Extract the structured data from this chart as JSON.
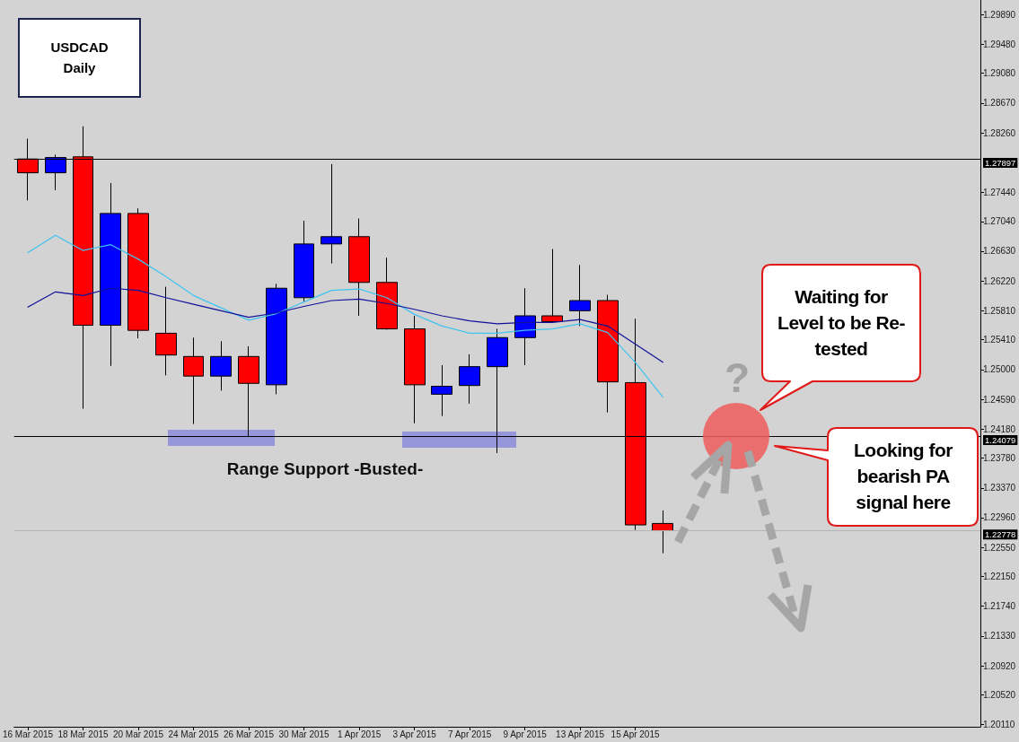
{
  "chart_data": {
    "type": "candlestick",
    "title": "USDCAD",
    "subtitle": "Daily",
    "categories": [
      "16 Mar 2015",
      null,
      "18 Mar 2015",
      null,
      "20 Mar 2015",
      null,
      "24 Mar 2015",
      null,
      "26 Mar 2015",
      null,
      "30 Mar 2015",
      null,
      "1 Apr 2015",
      null,
      "3 Apr 2015",
      null,
      "7 Apr 2015",
      null,
      "9 Apr 2015",
      null,
      "13 Apr 2015",
      null,
      "15 Apr 2015",
      null
    ],
    "ohlc": [
      [
        1.279,
        1.2818,
        1.2733,
        1.2771
      ],
      [
        1.2771,
        1.2796,
        1.2747,
        1.2792
      ],
      [
        1.2793,
        1.2835,
        1.2446,
        1.2561
      ],
      [
        1.2561,
        1.2757,
        1.2505,
        1.2715
      ],
      [
        1.2715,
        1.2722,
        1.2543,
        1.2554
      ],
      [
        1.255,
        1.2614,
        1.2492,
        1.252
      ],
      [
        1.2518,
        1.2544,
        1.2425,
        1.2491
      ],
      [
        1.2491,
        1.2539,
        1.2471,
        1.2518
      ],
      [
        1.2518,
        1.2532,
        1.2407,
        1.2481
      ],
      [
        1.2479,
        1.2618,
        1.2466,
        1.2612
      ],
      [
        1.2599,
        1.2705,
        1.2594,
        1.2673
      ],
      [
        1.2673,
        1.2783,
        1.2646,
        1.2683
      ],
      [
        1.2683,
        1.2708,
        1.2574,
        1.262
      ],
      [
        1.262,
        1.2654,
        1.2555,
        1.2556
      ],
      [
        1.2556,
        1.2574,
        1.2426,
        1.2479
      ],
      [
        1.2466,
        1.2506,
        1.2436,
        1.2477
      ],
      [
        1.2478,
        1.2521,
        1.2453,
        1.2504
      ],
      [
        1.2504,
        1.2556,
        1.2385,
        1.2544
      ],
      [
        1.2544,
        1.2612,
        1.2506,
        1.2574
      ],
      [
        1.2574,
        1.2666,
        1.2566,
        1.2566
      ],
      [
        1.2581,
        1.2644,
        1.256,
        1.2595
      ],
      [
        1.2595,
        1.2603,
        1.2441,
        1.2483
      ],
      [
        1.2482,
        1.257,
        1.2279,
        1.2286
      ],
      [
        1.2288,
        1.2306,
        1.2247,
        1.2278
      ]
    ],
    "colors": [
      "#ff0000",
      "#0000ff",
      "#ff0000",
      "#0000ff",
      "#ff0000",
      "#ff0000",
      "#ff0000",
      "#0000ff",
      "#ff0000",
      "#0000ff",
      "#0000ff",
      "#0000ff",
      "#ff0000",
      "#ff0000",
      "#ff0000",
      "#0000ff",
      "#0000ff",
      "#0000ff",
      "#0000ff",
      "#ff0000",
      "#0000ff",
      "#ff0000",
      "#ff0000",
      "#ff0000"
    ],
    "series": [
      {
        "type": "line",
        "color": "#3ec4f0",
        "values": [
          1.2661,
          1.2685,
          1.2664,
          1.2672,
          1.2652,
          1.2628,
          1.2602,
          1.2585,
          1.2568,
          1.2577,
          1.2593,
          1.2609,
          1.2611,
          1.2599,
          1.2576,
          1.256,
          1.255,
          1.255,
          1.2554,
          1.2556,
          1.2563,
          1.2551,
          1.251,
          1.2462
        ]
      },
      {
        "type": "line",
        "color": "#10109a",
        "values": [
          1.2586,
          1.2607,
          1.2602,
          1.2612,
          1.2609,
          1.2599,
          1.259,
          1.2581,
          1.2572,
          1.2578,
          1.2587,
          1.2595,
          1.2597,
          1.2591,
          1.2583,
          1.2574,
          1.2567,
          1.2563,
          1.2565,
          1.2565,
          1.2569,
          1.256,
          1.2535,
          1.251
        ]
      }
    ],
    "marker": "none",
    "ylim": [
      1.2008,
      1.3009
    ],
    "yticks": [
      {
        "value": 1.2989,
        "label": "1.29890"
      },
      {
        "value": 1.2948,
        "label": "1.29480"
      },
      {
        "value": 1.2908,
        "label": "1.29080"
      },
      {
        "value": 1.2867,
        "label": "1.28670"
      },
      {
        "value": 1.2826,
        "label": "1.28260"
      },
      {
        "value": 1.2744,
        "label": "1.27440"
      },
      {
        "value": 1.2704,
        "label": "1.27040"
      },
      {
        "value": 1.2663,
        "label": "1.26630"
      },
      {
        "value": 1.2622,
        "label": "1.26220"
      },
      {
        "value": 1.2581,
        "label": "1.25810"
      },
      {
        "value": 1.2541,
        "label": "1.25410"
      },
      {
        "value": 1.25,
        "label": "1.25000"
      },
      {
        "value": 1.2459,
        "label": "1.24590"
      },
      {
        "value": 1.2418,
        "label": "1.24180"
      },
      {
        "value": 1.2378,
        "label": "1.23780"
      },
      {
        "value": 1.2337,
        "label": "1.23370"
      },
      {
        "value": 1.2296,
        "label": "1.22960"
      },
      {
        "value": 1.2255,
        "label": "1.22550"
      },
      {
        "value": 1.2215,
        "label": "1.22150"
      },
      {
        "value": 1.2174,
        "label": "1.21740"
      },
      {
        "value": 1.2133,
        "label": "1.21330"
      },
      {
        "value": 1.2092,
        "label": "1.20920"
      },
      {
        "value": 1.2052,
        "label": "1.20520"
      },
      {
        "value": 1.2011,
        "label": "1.20110"
      }
    ],
    "ref_lines": [
      {
        "axis": "y",
        "value": 1.27897,
        "label": "1.27897",
        "color": "#000000"
      },
      {
        "axis": "y",
        "value": 1.24079,
        "label": "1.24079",
        "color": "#000000"
      },
      {
        "axis": "y",
        "value": 1.22778,
        "label": "1.22778",
        "color": "#b4b4b4"
      }
    ],
    "annotations": [
      "Range Support -Busted-",
      "?",
      "Waiting for\nLevel to be Re-\ntested",
      "Looking for\nbearish PA\nsignal here"
    ]
  }
}
